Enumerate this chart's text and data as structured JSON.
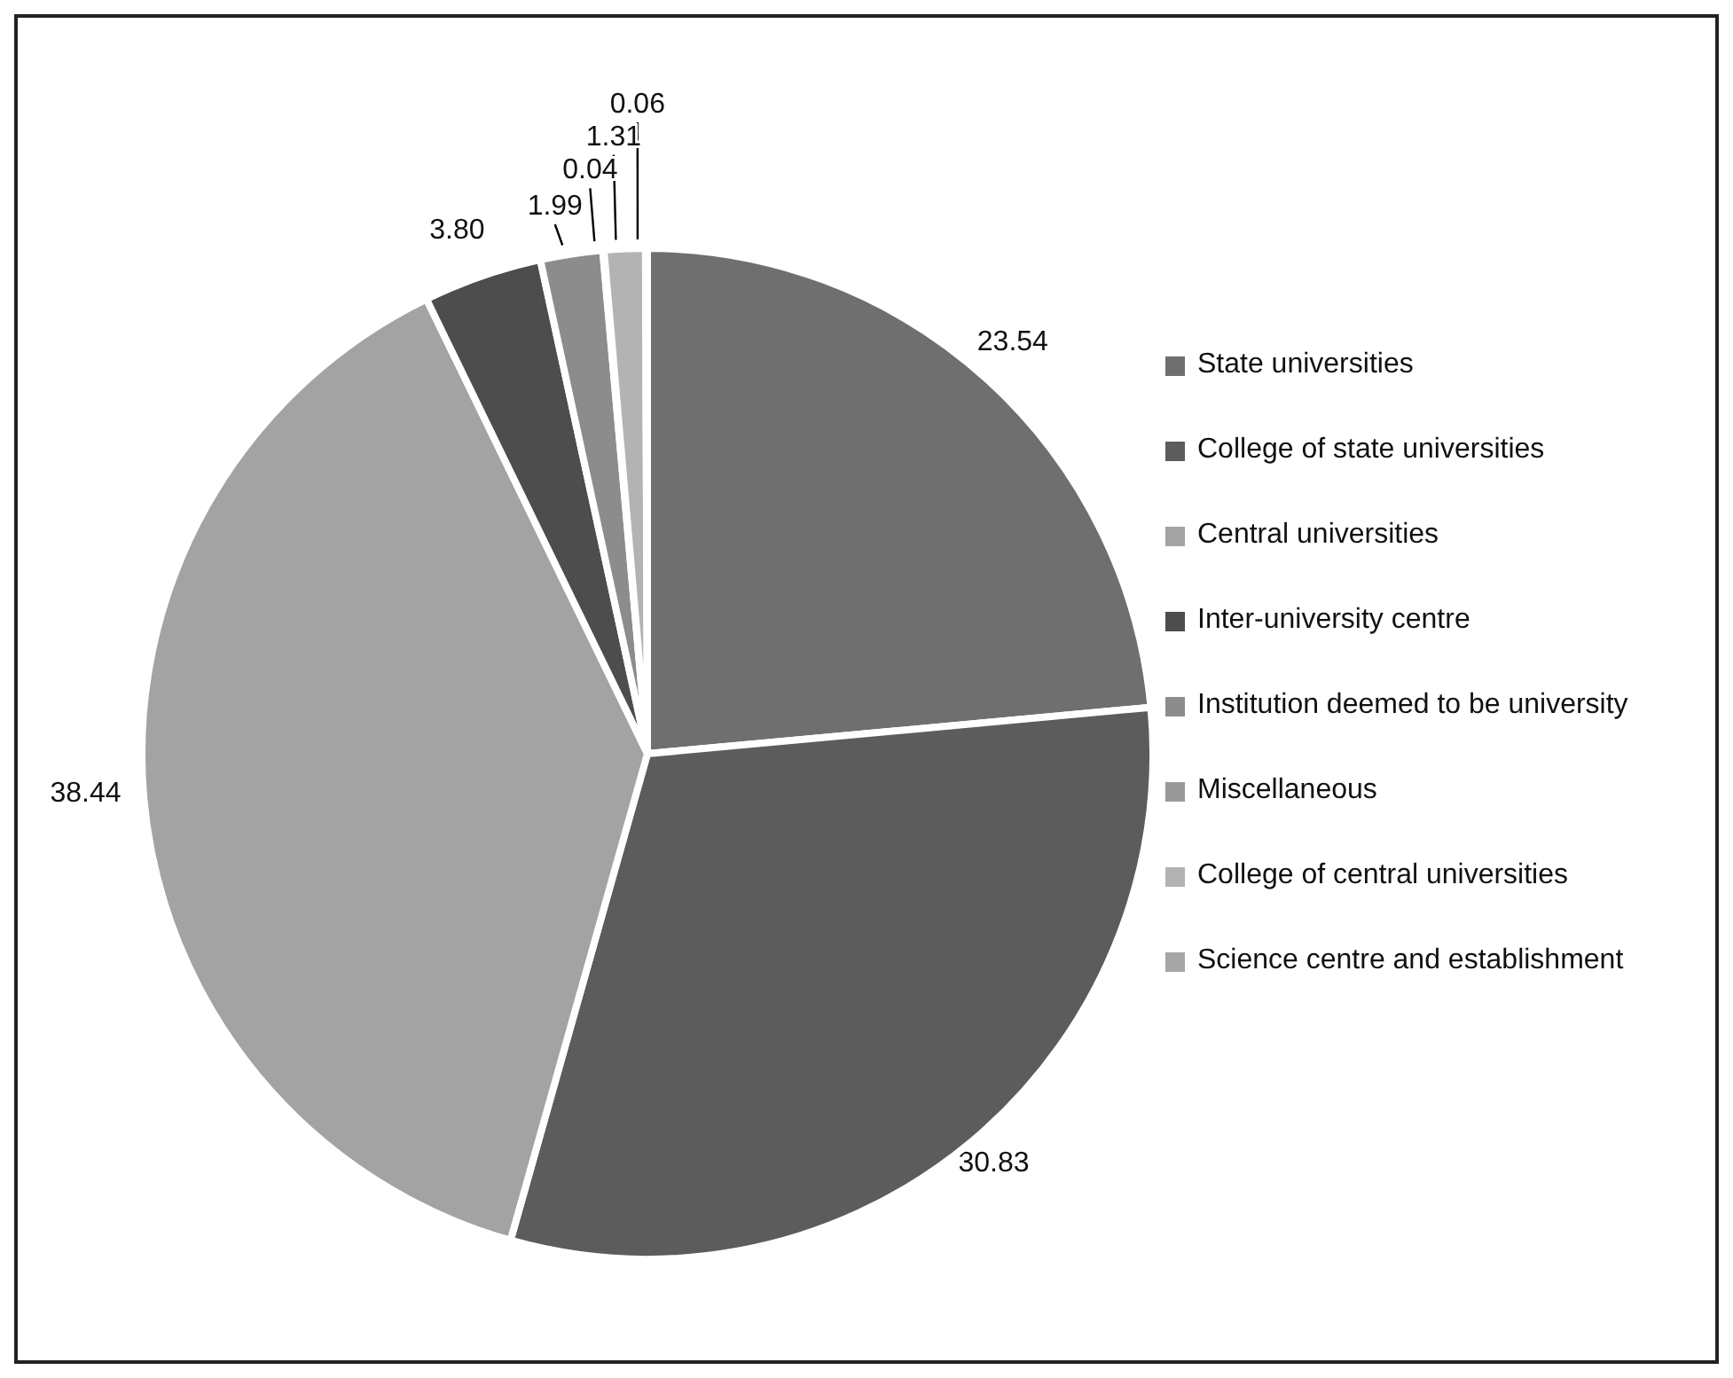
{
  "chart_data": {
    "type": "pie",
    "categories": [
      "State universities",
      "College of state universities",
      "Central universities",
      "Inter-university centre",
      "Institution deemed to be university",
      "Miscellaneous",
      "College of central universities",
      "Science centre and establishment"
    ],
    "values": [
      23.54,
      30.83,
      38.44,
      3.8,
      1.99,
      0.04,
      1.31,
      0.06
    ],
    "colors": [
      "#6f6f6f",
      "#5c5c5c",
      "#a3a3a3",
      "#4d4d4d",
      "#8c8c8c",
      "#999999",
      "#b3b3b3",
      "#a6a6a6"
    ],
    "value_labels": [
      "23.54",
      "30.83",
      "38.44",
      "3.80",
      "1.99",
      "0.04",
      "1.31",
      "0.06"
    ],
    "legend": "right"
  }
}
